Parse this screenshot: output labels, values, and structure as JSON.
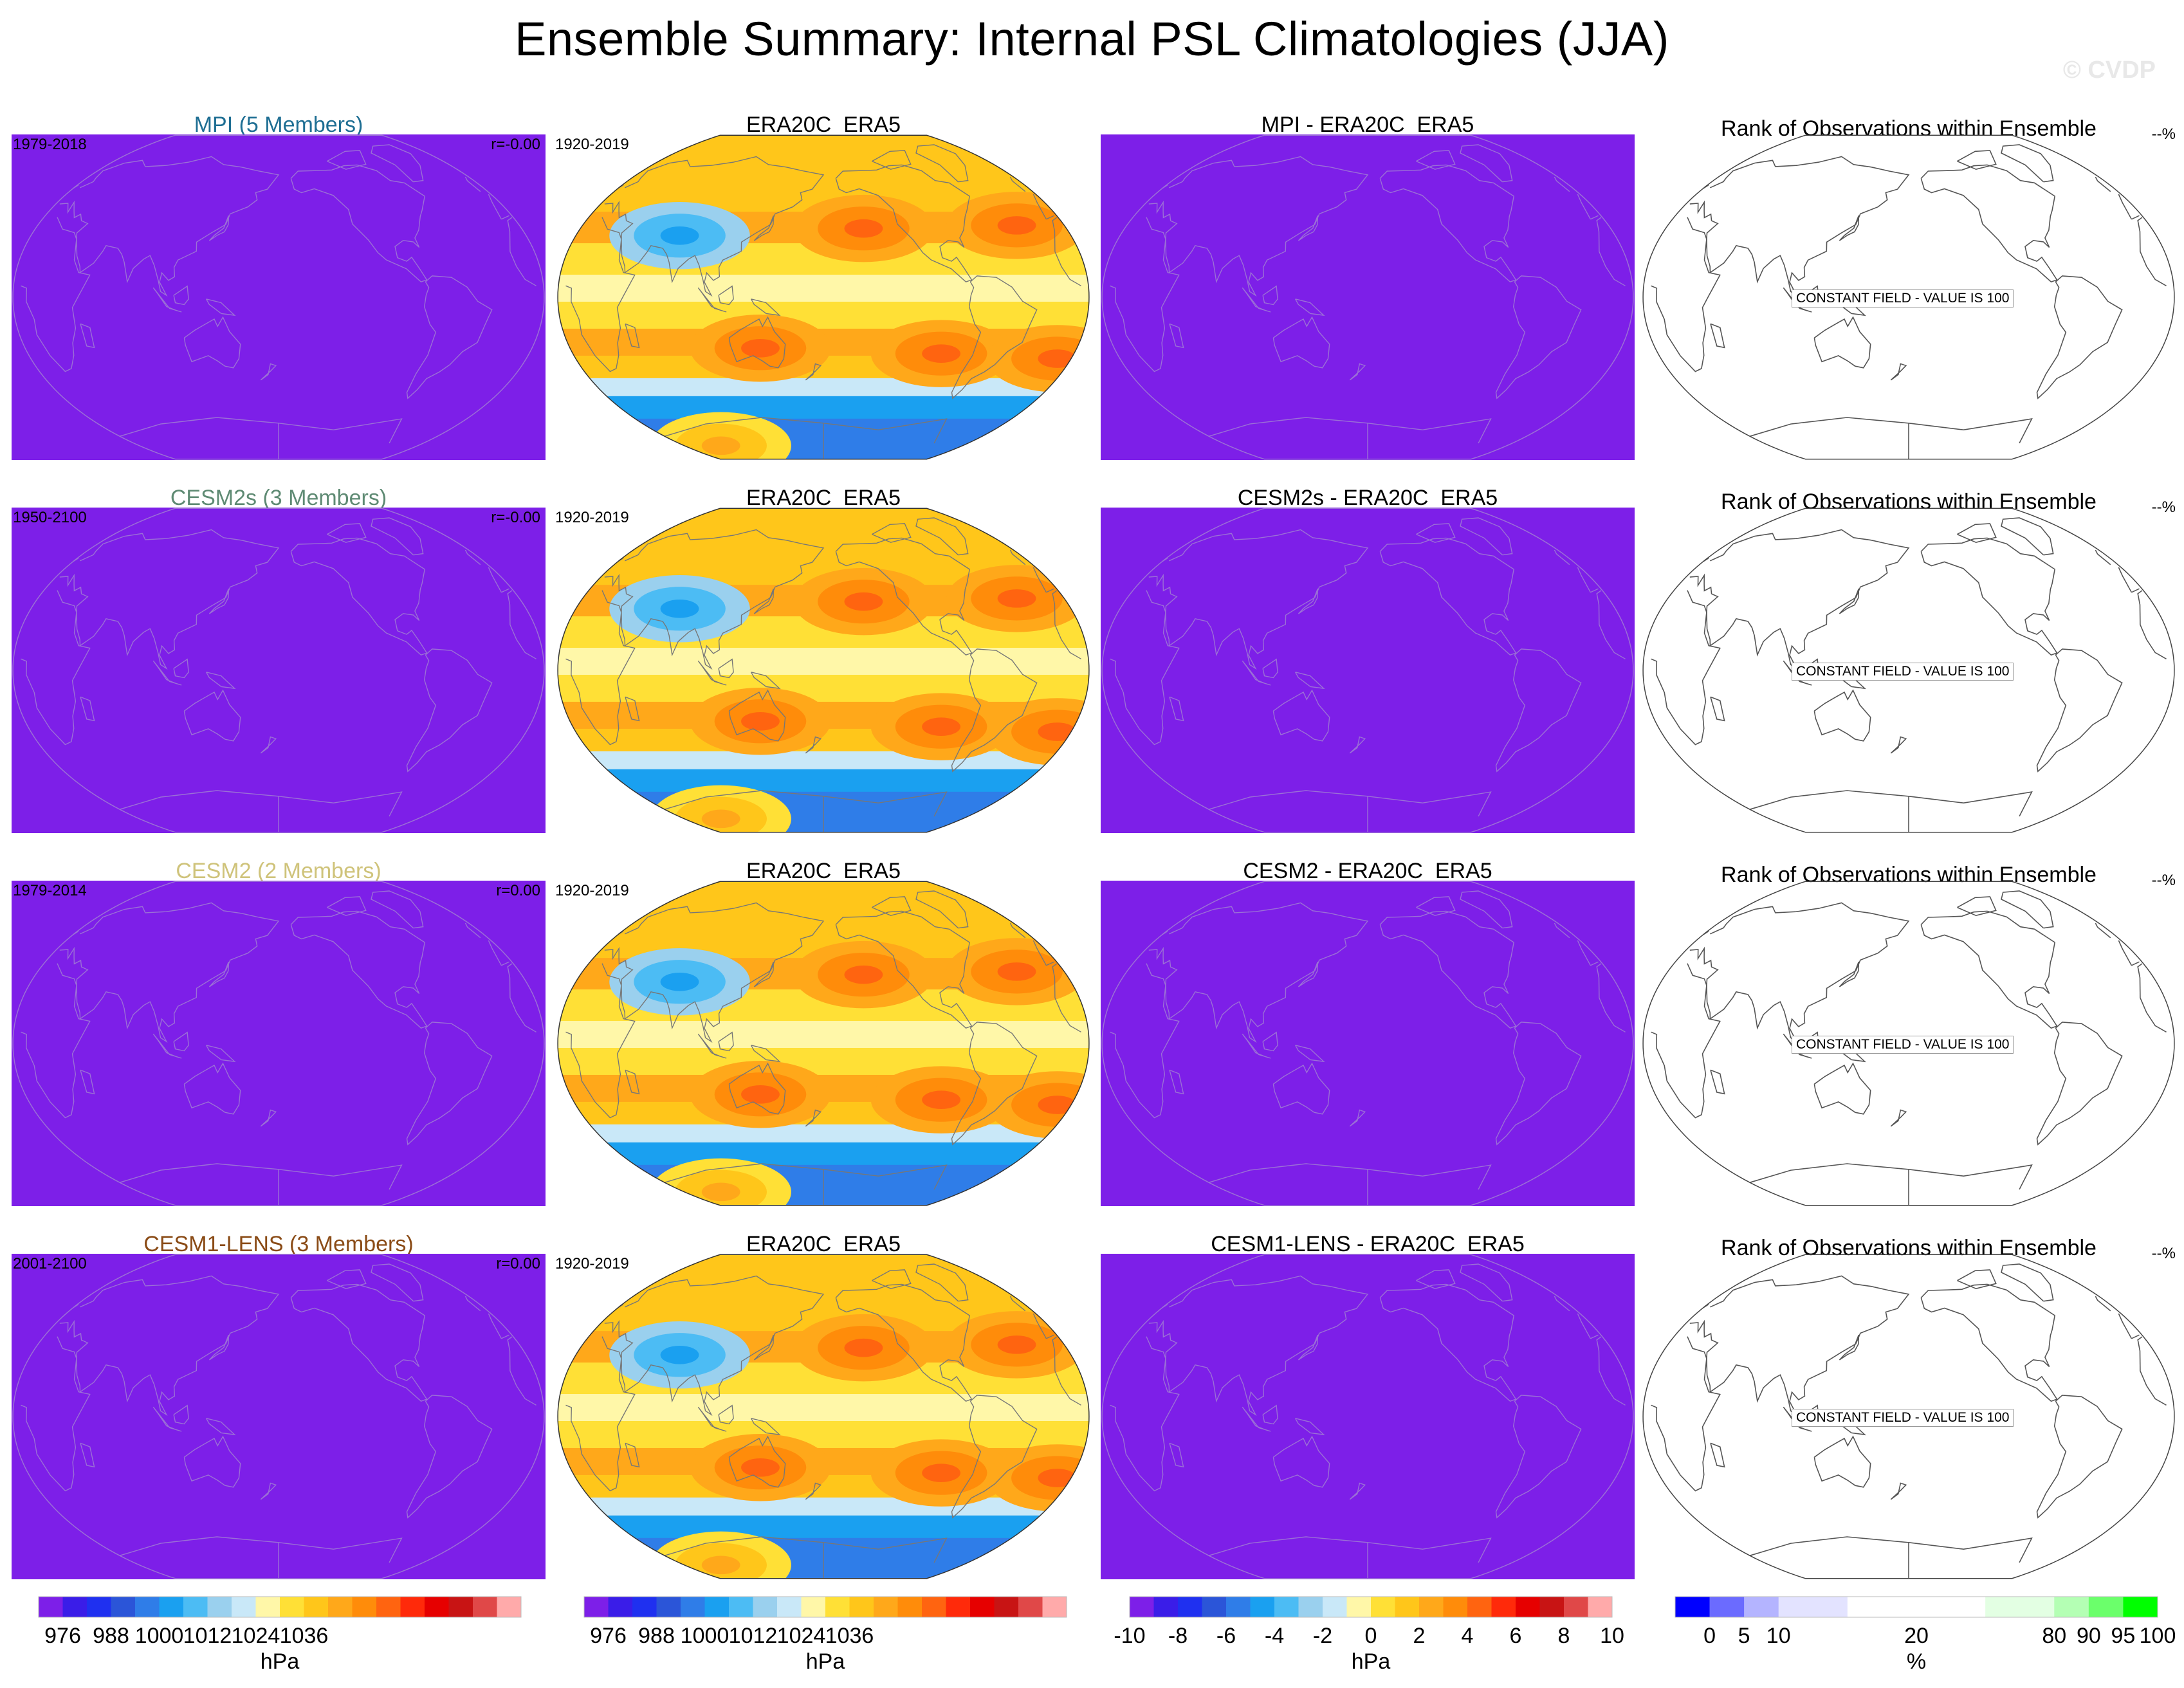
{
  "title": "Ensemble Summary: Internal PSL Climatologies (JJA)",
  "watermark": "© CVDP",
  "colors": {
    "flat_model": "#7d1fe8",
    "mpi_title": "#1e6e93",
    "cesm2s_title": "#5e8a73",
    "cesm2_title": "#cfc37a",
    "cesm1_title": "#8a4b16",
    "coast_on_flat": "#9b6fd6",
    "coast_obs": "#777777",
    "coast_rank": "#555555"
  },
  "rows": [
    {
      "model_title": "MPI (5 Members)",
      "model_color_key": "mpi_title",
      "model_years": "1979-2018",
      "model_r": "r=-0.00",
      "obs_title": "ERA20C_ERA5",
      "obs_years": "1920-2019",
      "diff_title": "MPI - ERA20C_ERA5",
      "rank_title": "Rank of Observations within Ensemble",
      "rank_pct": "--%",
      "rank_const": "CONSTANT FIELD - VALUE IS 100"
    },
    {
      "model_title": "CESM2s (3 Members)",
      "model_color_key": "cesm2s_title",
      "model_years": "1950-2100",
      "model_r": "r=-0.00",
      "obs_title": "ERA20C_ERA5",
      "obs_years": "1920-2019",
      "diff_title": "CESM2s - ERA20C_ERA5",
      "rank_title": "Rank of Observations within Ensemble",
      "rank_pct": "--%",
      "rank_const": "CONSTANT FIELD - VALUE IS 100"
    },
    {
      "model_title": "CESM2 (2 Members)",
      "model_color_key": "cesm2_title",
      "model_years": "1979-2014",
      "model_r": "r=0.00",
      "obs_title": "ERA20C_ERA5",
      "obs_years": "1920-2019",
      "diff_title": "CESM2 - ERA20C_ERA5",
      "rank_title": "Rank of Observations within Ensemble",
      "rank_pct": "--%",
      "rank_const": "CONSTANT FIELD - VALUE IS 100"
    },
    {
      "model_title": "CESM1-LENS (3 Members)",
      "model_color_key": "cesm1_title",
      "model_years": "2001-2100",
      "model_r": "r=0.00",
      "obs_title": "ERA20C_ERA5",
      "obs_years": "1920-2019",
      "diff_title": "CESM1-LENS - ERA20C_ERA5",
      "rank_title": "Rank of Observations within Ensemble",
      "rank_pct": "--%",
      "rank_const": "CONSTANT FIELD - VALUE IS 100"
    }
  ],
  "chart_data": [
    {
      "type": "colorbar",
      "name": "psl_climatology",
      "unit": "hPa",
      "colors": [
        "#7d1fe8",
        "#3a1de8",
        "#1f30f0",
        "#2b55d8",
        "#2f7de8",
        "#1aa0f0",
        "#4cbcf4",
        "#9ad0ee",
        "#c9e8f8",
        "#fff7a8",
        "#ffe036",
        "#ffc61a",
        "#ffa81a",
        "#ff8c0a",
        "#ff6410",
        "#ff2a0a",
        "#e60000",
        "#c81414",
        "#e04848",
        "#ffaaaa"
      ],
      "tick_labels": [
        "976",
        "988",
        "1000",
        "1012",
        "1024",
        "1036"
      ],
      "tick_after_index": [
        1,
        3,
        5,
        7,
        9,
        11
      ]
    },
    {
      "type": "colorbar",
      "name": "psl_difference",
      "unit": "hPa",
      "colors": [
        "#7d1fe8",
        "#3a1de8",
        "#1f30f0",
        "#2b55d8",
        "#2f7de8",
        "#1aa0f0",
        "#4cbcf4",
        "#9ad0ee",
        "#c9e8f8",
        "#fff7a8",
        "#ffe036",
        "#ffc61a",
        "#ffa81a",
        "#ff8c0a",
        "#ff6410",
        "#ff2a0a",
        "#e60000",
        "#c81414",
        "#e04848",
        "#ffaaaa"
      ],
      "tick_labels": [
        "-10",
        "-8",
        "-6",
        "-4",
        "-2",
        "0",
        "2",
        "4",
        "6",
        "8",
        "10"
      ],
      "tick_after_index": [
        0,
        2,
        4,
        6,
        8,
        10,
        12,
        14,
        16,
        18,
        20
      ]
    },
    {
      "type": "colorbar",
      "name": "rank_percent",
      "unit": "%",
      "colors": [
        "#0000ff",
        "#6b6bff",
        "#b4b4ff",
        "#e3e3ff",
        "#ffffff",
        "#ffffff",
        "#e3ffe3",
        "#b4ffb4",
        "#6bff6b",
        "#00ff00"
      ],
      "widths": [
        1,
        1,
        1,
        2,
        2,
        2,
        2,
        1,
        1,
        1
      ],
      "tick_labels": [
        "0",
        "5",
        "10",
        "20",
        "80",
        "90",
        "95",
        "100"
      ],
      "tick_after_index": [
        1,
        2,
        3,
        5,
        7,
        8,
        9,
        10
      ]
    },
    {
      "type": "heatmap",
      "name": "era20c_era5_jja_psl_bands",
      "unit": "hPa",
      "latitude_bands": [
        {
          "lat": 75,
          "level_index": 11
        },
        {
          "lat": 55,
          "level_index": 11
        },
        {
          "lat": 40,
          "level_index": 12
        },
        {
          "lat": 20,
          "level_index": 10
        },
        {
          "lat": 5,
          "level_index": 9
        },
        {
          "lat": -10,
          "level_index": 10
        },
        {
          "lat": -25,
          "level_index": 12
        },
        {
          "lat": -40,
          "level_index": 11
        },
        {
          "lat": -50,
          "level_index": 8
        },
        {
          "lat": -60,
          "level_index": 5
        },
        {
          "lat": -75,
          "level_index": 4
        }
      ],
      "features": [
        {
          "name": "North Pacific High",
          "lon": -150,
          "lat": 38,
          "level_index": 13
        },
        {
          "name": "Azores High",
          "lon": -35,
          "lat": 35,
          "level_index": 13
        },
        {
          "name": "Asian Monsoon Low",
          "lon": 75,
          "lat": 32,
          "level_index": 6
        },
        {
          "name": "Australian High",
          "lon": 135,
          "lat": -28,
          "level_index": 13
        },
        {
          "name": "South Pacific High",
          "lon": -95,
          "lat": -30,
          "level_index": 13
        },
        {
          "name": "South Atlantic High",
          "lon": -10,
          "lat": -28,
          "level_index": 13
        },
        {
          "name": "Antarctic Plateau",
          "lon": 45,
          "lat": -80,
          "level_index": 11
        }
      ]
    }
  ]
}
